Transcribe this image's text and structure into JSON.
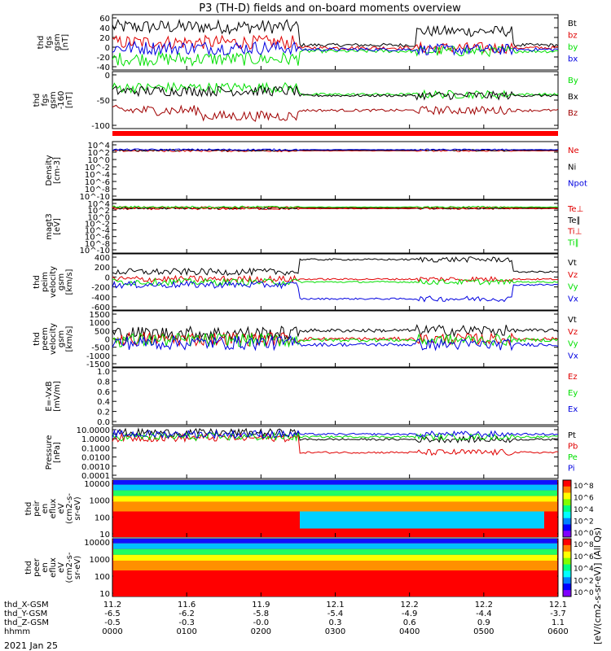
{
  "title": "P3 (TH-D) fields and on-board moments overview",
  "date_label": "2021 Jan 25",
  "colorbar_label": "[eV/(cm2-s-sr-eV)] (All Qs)",
  "colors": {
    "black": "#000000",
    "red": "#e00000",
    "green": "#00e000",
    "blue": "#0000e0",
    "darkred": "#a00000",
    "lime": "#00ff00"
  },
  "time_axis": {
    "ticks_hhmm": [
      "0000",
      "0100",
      "0200",
      "0300",
      "0400",
      "0500",
      "0600"
    ],
    "rows": [
      {
        "label": "thd_X-GSM",
        "values": [
          "11.2",
          "11.6",
          "11.9",
          "12.1",
          "12.2",
          "12.2",
          "12.1"
        ]
      },
      {
        "label": "thd_Y-GSM",
        "values": [
          "-6.5",
          "-6.2",
          "-5.8",
          "-5.4",
          "-4.9",
          "-4.4",
          "-3.7"
        ]
      },
      {
        "label": "thd_Z-GSM",
        "values": [
          "-0.5",
          "-0.3",
          "-0.0",
          "0.3",
          "0.6",
          "0.9",
          "1.1"
        ]
      },
      {
        "label": "hhmm",
        "values": [
          "0000",
          "0100",
          "0200",
          "0300",
          "0400",
          "0500",
          "0600"
        ]
      }
    ]
  },
  "chart_data": [
    {
      "type": "line",
      "ylabel": [
        "thd",
        "fgs",
        "gsm",
        "[nT]"
      ],
      "yticks": [
        "60",
        "40",
        "20",
        "0",
        "-20",
        "-40"
      ],
      "ylim": [
        -40,
        62
      ],
      "series": [
        {
          "name": "Bt",
          "color": "#000000"
        },
        {
          "name": "bz",
          "color": "#e00000"
        },
        {
          "name": "by",
          "color": "#00e000"
        },
        {
          "name": "bx",
          "color": "#0000e0"
        }
      ]
    },
    {
      "type": "line",
      "ylabel": [
        "thd",
        "fgs",
        "gsm",
        "-160",
        "[nT]"
      ],
      "yticks": [
        "0",
        "-50",
        "-100"
      ],
      "ylim": [
        -120,
        10
      ],
      "series": [
        {
          "name": "By",
          "color": "#00e000"
        },
        {
          "name": "Bx",
          "color": "#000000"
        },
        {
          "name": "Bz",
          "color": "#a00000"
        }
      ]
    },
    {
      "type": "line",
      "ylabel": [
        "Density",
        "[cm-3]"
      ],
      "yticks": [
        "10^4",
        "10^2",
        "10^0",
        "10^-2",
        "10^-4",
        "10^-6",
        "10^-8",
        "10^-10"
      ],
      "ylim": [
        -10,
        4.5
      ],
      "log": true,
      "series": [
        {
          "name": "Ne",
          "color": "#e00000"
        },
        {
          "name": "Ni",
          "color": "#000000"
        },
        {
          "name": "Npot",
          "color": "#0000e0"
        }
      ]
    },
    {
      "type": "line",
      "ylabel": [
        "magt3",
        "[eV]"
      ],
      "yticks": [
        "10^4",
        "10^2",
        "10^0",
        "10^-2",
        "10^-4",
        "10^-6",
        "10^-8",
        "10^-10"
      ],
      "ylim": [
        -10,
        4.5
      ],
      "log": true,
      "series": [
        {
          "name": "Te⊥",
          "color": "#e00000"
        },
        {
          "name": "Te∥",
          "color": "#000000"
        },
        {
          "name": "Ti⊥",
          "color": "#e00000"
        },
        {
          "name": "Ti∥",
          "color": "#00e000"
        }
      ]
    },
    {
      "type": "line",
      "ylabel": [
        "thd",
        "peim",
        "velocity",
        "gsm",
        "[km/s]"
      ],
      "yticks": [
        "400",
        "200",
        "0",
        "-200",
        "-400",
        "-600"
      ],
      "ylim": [
        -600,
        450
      ],
      "series": [
        {
          "name": "Vt",
          "color": "#000000"
        },
        {
          "name": "Vz",
          "color": "#e00000"
        },
        {
          "name": "Vy",
          "color": "#00e000"
        },
        {
          "name": "Vx",
          "color": "#0000e0"
        }
      ]
    },
    {
      "type": "line",
      "ylabel": [
        "thd",
        "peem",
        "velocity",
        "gsm",
        "[km/s]"
      ],
      "yticks": [
        "1500",
        "1000",
        "500",
        "0",
        "-500",
        "-1000",
        "-1500"
      ],
      "ylim": [
        -1500,
        1500
      ],
      "series": [
        {
          "name": "Vt",
          "color": "#000000"
        },
        {
          "name": "Vz",
          "color": "#e00000"
        },
        {
          "name": "Vy",
          "color": "#00e000"
        },
        {
          "name": "Vx",
          "color": "#0000e0"
        }
      ]
    },
    {
      "type": "line",
      "ylabel": [
        "E=-VxB",
        "[mV/m]"
      ],
      "yticks": [
        "1.0",
        "0.8",
        "0.6",
        "0.4",
        "0.2",
        "0.0"
      ],
      "ylim": [
        0,
        1.0
      ],
      "series": [
        {
          "name": "Ez",
          "color": "#e00000"
        },
        {
          "name": "Ey",
          "color": "#00e000"
        },
        {
          "name": "Ex",
          "color": "#0000e0"
        }
      ]
    },
    {
      "type": "line",
      "ylabel": [
        "Pressure",
        "[nPa]"
      ],
      "yticks": [
        "10.0000",
        "1.0000",
        "0.1000",
        "0.0100",
        "0.0010",
        "0.0001"
      ],
      "ylim": [
        -4,
        1
      ],
      "log": true,
      "series": [
        {
          "name": "Pt",
          "color": "#000000"
        },
        {
          "name": "Pb",
          "color": "#e00000"
        },
        {
          "name": "Pe",
          "color": "#00e000"
        },
        {
          "name": "Pi",
          "color": "#0000e0"
        }
      ]
    },
    {
      "type": "heatmap",
      "ylabel": [
        "thd",
        "peir",
        "en",
        "eflux",
        "eV",
        "(cm2-s-",
        "sr-eV)"
      ],
      "yticks": [
        "10000",
        "1000",
        "100",
        "10"
      ],
      "colorbar_ticks": [
        "10^8",
        "10^6",
        "10^4",
        "10^2",
        "10^0"
      ]
    },
    {
      "type": "heatmap",
      "ylabel": [
        "thd",
        "peer",
        "en",
        "eflux",
        "eV",
        "(cm2-s-",
        "sr-eV)"
      ],
      "yticks": [
        "10000",
        "1000",
        "100",
        "10"
      ],
      "colorbar_ticks": [
        "10^8",
        "10^6",
        "10^4",
        "10^2",
        "10^0"
      ]
    }
  ]
}
